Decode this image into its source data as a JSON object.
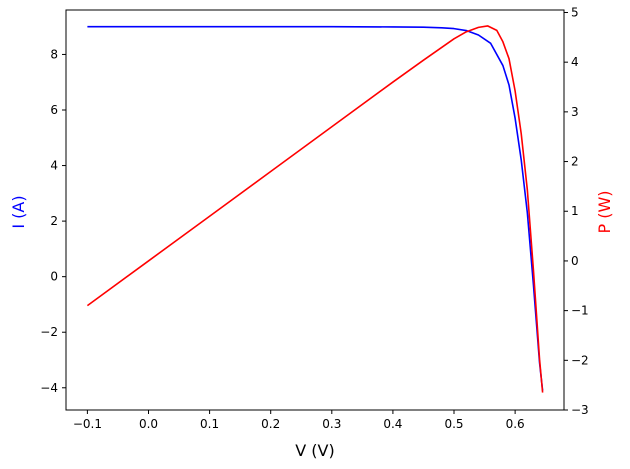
{
  "chart_data": {
    "type": "line",
    "title": "",
    "xlabel": "V (V)",
    "ylabel_left": "I (A)",
    "ylabel_right": "P (W)",
    "xlim": [
      -0.135,
      0.68
    ],
    "ylim_left": [
      -4.8,
      9.6
    ],
    "ylim_right": [
      -3.0,
      5.05
    ],
    "x_ticks": [
      -0.1,
      0.0,
      0.1,
      0.2,
      0.3,
      0.4,
      0.5,
      0.6
    ],
    "x_tick_labels": [
      "−0.1",
      "0.0",
      "0.1",
      "0.2",
      "0.3",
      "0.4",
      "0.5",
      "0.6"
    ],
    "y_left_ticks": [
      -4,
      -2,
      0,
      2,
      4,
      6,
      8
    ],
    "y_left_tick_labels": [
      "−4",
      "−2",
      "0",
      "2",
      "4",
      "6",
      "8"
    ],
    "y_right_ticks": [
      -3,
      -2,
      -1,
      0,
      1,
      2,
      3,
      4,
      5
    ],
    "y_right_tick_labels": [
      "−3",
      "−2",
      "−1",
      "0",
      "1",
      "2",
      "3",
      "4",
      "5"
    ],
    "grid": false,
    "legend": "none",
    "series": [
      {
        "axis": "left",
        "color": "#0000ff",
        "x": [
          -0.1,
          0.0,
          0.1,
          0.2,
          0.3,
          0.4,
          0.45,
          0.48,
          0.5,
          0.52,
          0.54,
          0.56,
          0.58,
          0.59,
          0.6,
          0.61,
          0.62,
          0.63,
          0.635,
          0.64,
          0.645
        ],
        "y": [
          9.0,
          9.0,
          9.0,
          9.0,
          9.0,
          8.99,
          8.98,
          8.96,
          8.93,
          8.86,
          8.7,
          8.4,
          7.6,
          6.9,
          5.7,
          4.2,
          2.3,
          -0.3,
          -1.7,
          -3.1,
          -4.1
        ]
      },
      {
        "axis": "right",
        "color": "#ff0000",
        "x": [
          -0.1,
          0.0,
          0.1,
          0.2,
          0.3,
          0.4,
          0.45,
          0.5,
          0.52,
          0.54,
          0.555,
          0.57,
          0.58,
          0.59,
          0.6,
          0.61,
          0.62,
          0.63,
          0.635,
          0.64,
          0.645
        ],
        "y": [
          -0.9,
          0.0,
          0.9,
          1.8,
          2.7,
          3.6,
          4.04,
          4.47,
          4.61,
          4.7,
          4.73,
          4.64,
          4.41,
          4.07,
          3.42,
          2.56,
          1.43,
          -0.19,
          -1.08,
          -1.98,
          -2.65
        ]
      }
    ]
  }
}
